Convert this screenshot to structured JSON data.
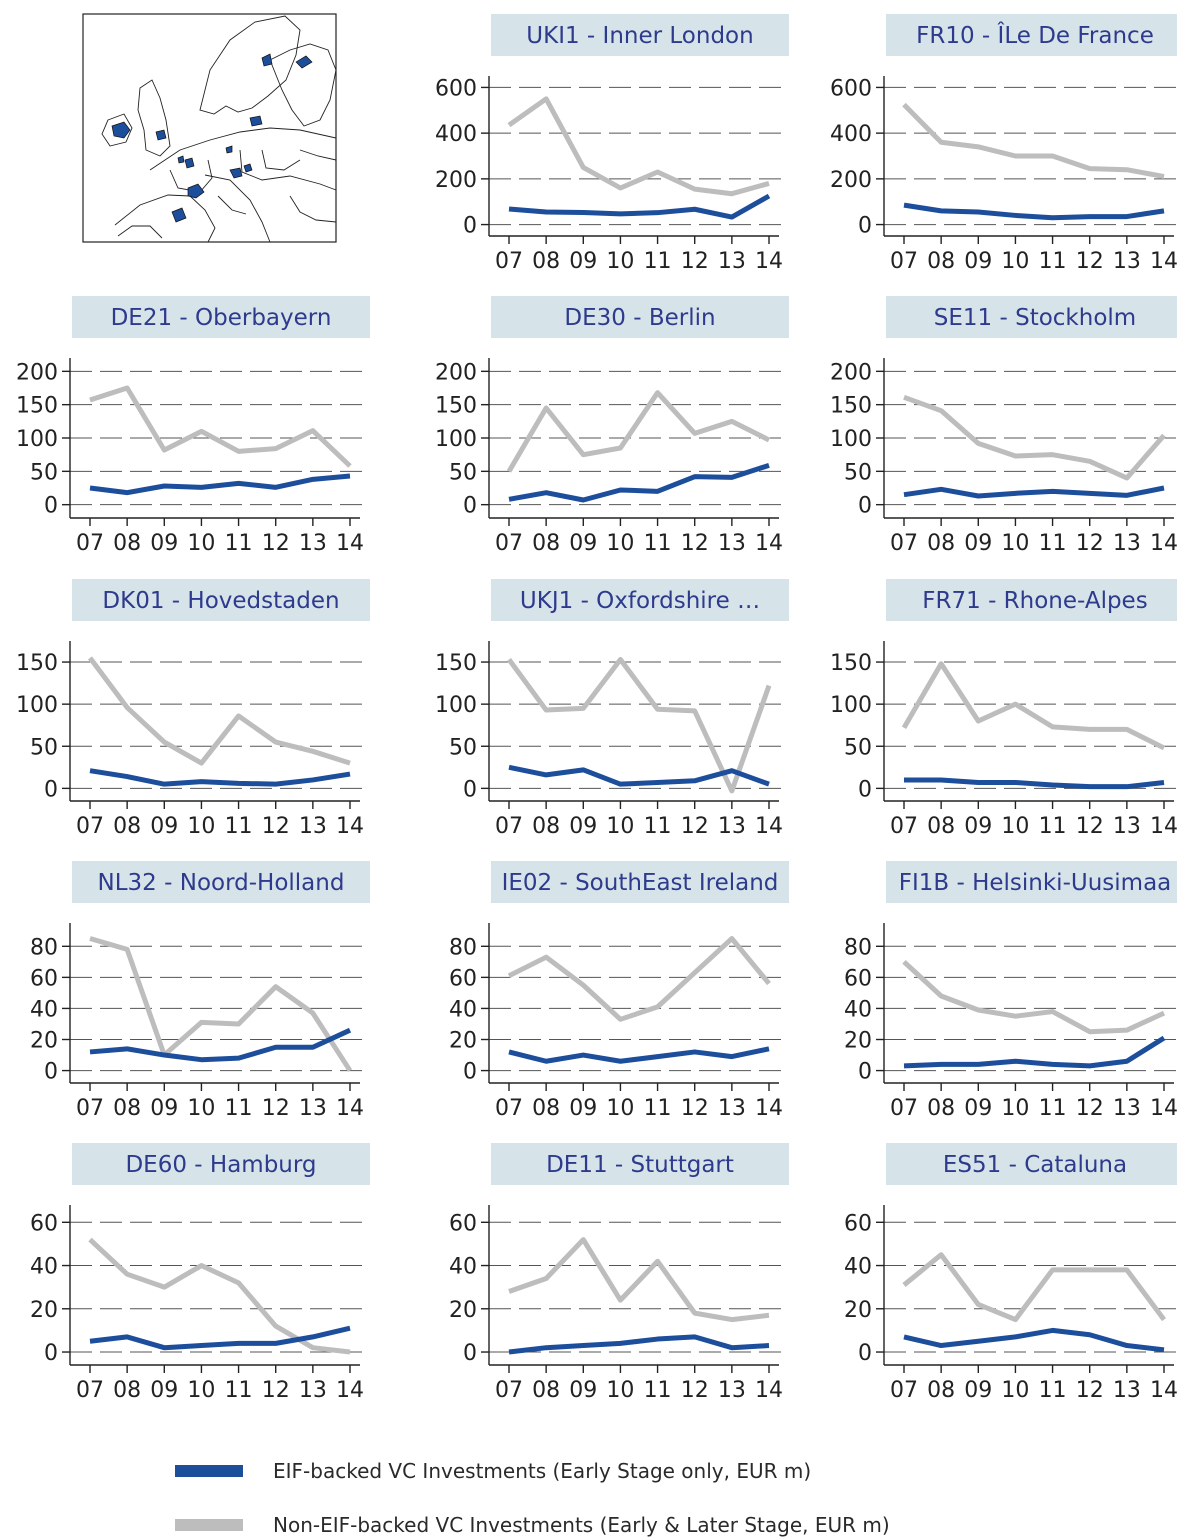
{
  "colors": {
    "eif": "#1c4e9c",
    "noneif": "#bdbdbd",
    "title_bg": "#d6e4ea",
    "title_text": "#2e3a8c"
  },
  "legend": {
    "eif_label": "EIF-backed VC Investments (Early Stage only, EUR m)",
    "noneif_label": "Non-EIF-backed VC Investments (Early & Later Stage, EUR m)"
  },
  "chart_data": [
    {
      "type": "line",
      "title": "UKI1 - Inner London",
      "categories": [
        "07",
        "08",
        "09",
        "10",
        "11",
        "12",
        "13",
        "14"
      ],
      "yticks": [
        0,
        200,
        400,
        600
      ],
      "ylim": [
        -50,
        650
      ],
      "grid": "dashed",
      "series": [
        {
          "name": "EIF-backed VC Investments (Early Stage only, EUR m)",
          "values": [
            68,
            55,
            53,
            47,
            52,
            67,
            33,
            125
          ]
        },
        {
          "name": "Non-EIF-backed VC Investments (Early & Later Stage, EUR m)",
          "values": [
            435,
            550,
            250,
            160,
            230,
            155,
            135,
            180
          ]
        }
      ]
    },
    {
      "type": "line",
      "title": "FR10 - ÎLe De France",
      "categories": [
        "07",
        "08",
        "09",
        "10",
        "11",
        "12",
        "13",
        "14"
      ],
      "yticks": [
        0,
        200,
        400,
        600
      ],
      "ylim": [
        -50,
        650
      ],
      "grid": "dashed",
      "series": [
        {
          "name": "EIF-backed VC Investments (Early Stage only, EUR m)",
          "values": [
            85,
            60,
            55,
            40,
            30,
            35,
            35,
            60
          ]
        },
        {
          "name": "Non-EIF-backed VC Investments (Early & Later Stage, EUR m)",
          "values": [
            525,
            360,
            340,
            300,
            300,
            245,
            240,
            210
          ]
        }
      ]
    },
    {
      "type": "line",
      "title": "DE21 - Oberbayern",
      "categories": [
        "07",
        "08",
        "09",
        "10",
        "11",
        "12",
        "13",
        "14"
      ],
      "yticks": [
        0,
        50,
        100,
        150,
        200
      ],
      "ylim": [
        -20,
        220
      ],
      "grid": "dashed",
      "series": [
        {
          "name": "EIF-backed VC Investments (Early Stage only, EUR m)",
          "values": [
            25,
            18,
            28,
            26,
            32,
            26,
            38,
            43
          ]
        },
        {
          "name": "Non-EIF-backed VC Investments (Early & Later Stage, EUR m)",
          "values": [
            157,
            175,
            82,
            110,
            80,
            84,
            111,
            58
          ]
        }
      ]
    },
    {
      "type": "line",
      "title": "DE30 - Berlin",
      "categories": [
        "07",
        "08",
        "09",
        "10",
        "11",
        "12",
        "13",
        "14"
      ],
      "yticks": [
        0,
        50,
        100,
        150,
        200
      ],
      "ylim": [
        -20,
        220
      ],
      "grid": "dashed",
      "series": [
        {
          "name": "EIF-backed VC Investments (Early Stage only, EUR m)",
          "values": [
            8,
            18,
            7,
            22,
            20,
            42,
            41,
            59
          ]
        },
        {
          "name": "Non-EIF-backed VC Investments (Early & Later Stage, EUR m)",
          "values": [
            50,
            145,
            75,
            85,
            168,
            107,
            125,
            97
          ]
        }
      ]
    },
    {
      "type": "line",
      "title": "SE11 - Stockholm",
      "categories": [
        "07",
        "08",
        "09",
        "10",
        "11",
        "12",
        "13",
        "14"
      ],
      "yticks": [
        0,
        50,
        100,
        150,
        200
      ],
      "ylim": [
        -20,
        220
      ],
      "grid": "dashed",
      "series": [
        {
          "name": "EIF-backed VC Investments (Early Stage only, EUR m)",
          "values": [
            15,
            23,
            13,
            17,
            20,
            17,
            14,
            25
          ]
        },
        {
          "name": "Non-EIF-backed VC Investments (Early & Later Stage, EUR m)",
          "values": [
            161,
            141,
            92,
            73,
            75,
            65,
            40,
            104
          ]
        }
      ]
    },
    {
      "type": "line",
      "title": "DK01 - Hovedstaden",
      "categories": [
        "07",
        "08",
        "09",
        "10",
        "11",
        "12",
        "13",
        "14"
      ],
      "yticks": [
        0,
        50,
        100,
        150
      ],
      "ylim": [
        -15,
        175
      ],
      "grid": "dashed",
      "series": [
        {
          "name": "EIF-backed VC Investments (Early Stage only, EUR m)",
          "values": [
            21,
            14,
            5,
            8,
            6,
            5,
            10,
            17
          ]
        },
        {
          "name": "Non-EIF-backed VC Investments (Early & Later Stage, EUR m)",
          "values": [
            155,
            96,
            55,
            30,
            86,
            55,
            44,
            30
          ]
        }
      ]
    },
    {
      "type": "line",
      "title": "UKJ1 - Oxfordshire …",
      "categories": [
        "07",
        "08",
        "09",
        "10",
        "11",
        "12",
        "13",
        "14"
      ],
      "yticks": [
        0,
        50,
        100,
        150
      ],
      "ylim": [
        -15,
        175
      ],
      "grid": "dashed",
      "series": [
        {
          "name": "EIF-backed VC Investments (Early Stage only, EUR m)",
          "values": [
            25,
            16,
            22,
            5,
            7,
            9,
            21,
            5
          ]
        },
        {
          "name": "Non-EIF-backed VC Investments (Early & Later Stage, EUR m)",
          "values": [
            153,
            93,
            95,
            153,
            94,
            92,
            -3,
            122
          ]
        }
      ]
    },
    {
      "type": "line",
      "title": "FR71 - Rhone-Alpes",
      "categories": [
        "07",
        "08",
        "09",
        "10",
        "11",
        "12",
        "13",
        "14"
      ],
      "yticks": [
        0,
        50,
        100,
        150
      ],
      "ylim": [
        -15,
        175
      ],
      "grid": "dashed",
      "series": [
        {
          "name": "EIF-backed VC Investments (Early Stage only, EUR m)",
          "values": [
            10,
            10,
            7,
            7,
            4,
            2,
            2,
            7
          ]
        },
        {
          "name": "Non-EIF-backed VC Investments (Early & Later Stage, EUR m)",
          "values": [
            72,
            148,
            80,
            100,
            73,
            70,
            70,
            48
          ]
        }
      ]
    },
    {
      "type": "line",
      "title": "NL32 - Noord-Holland",
      "categories": [
        "07",
        "08",
        "09",
        "10",
        "11",
        "12",
        "13",
        "14"
      ],
      "yticks": [
        0,
        20,
        40,
        60,
        80
      ],
      "ylim": [
        -8,
        95
      ],
      "grid": "dashed",
      "series": [
        {
          "name": "EIF-backed VC Investments (Early Stage only, EUR m)",
          "values": [
            12,
            14,
            10,
            7,
            8,
            15,
            15,
            26
          ]
        },
        {
          "name": "Non-EIF-backed VC Investments (Early & Later Stage, EUR m)",
          "values": [
            85,
            78,
            10,
            31,
            30,
            54,
            37,
            0
          ]
        }
      ]
    },
    {
      "type": "line",
      "title": "IE02 - SouthEast Ireland",
      "categories": [
        "07",
        "08",
        "09",
        "10",
        "11",
        "12",
        "13",
        "14"
      ],
      "yticks": [
        0,
        20,
        40,
        60,
        80
      ],
      "ylim": [
        -8,
        95
      ],
      "grid": "dashed",
      "series": [
        {
          "name": "EIF-backed VC Investments (Early Stage only, EUR m)",
          "values": [
            12,
            6,
            10,
            6,
            9,
            12,
            9,
            14
          ]
        },
        {
          "name": "Non-EIF-backed VC Investments (Early & Later Stage, EUR m)",
          "values": [
            61,
            73,
            55,
            33,
            41,
            63,
            85,
            56
          ]
        }
      ]
    },
    {
      "type": "line",
      "title": "FI1B - Helsinki-Uusimaa",
      "categories": [
        "07",
        "08",
        "09",
        "10",
        "11",
        "12",
        "13",
        "14"
      ],
      "yticks": [
        0,
        20,
        40,
        60,
        80
      ],
      "ylim": [
        -8,
        95
      ],
      "grid": "dashed",
      "series": [
        {
          "name": "EIF-backed VC Investments (Early Stage only, EUR m)",
          "values": [
            3,
            4,
            4,
            6,
            4,
            3,
            6,
            21
          ]
        },
        {
          "name": "Non-EIF-backed VC Investments (Early & Later Stage, EUR m)",
          "values": [
            70,
            48,
            39,
            35,
            38,
            25,
            26,
            37
          ]
        }
      ]
    },
    {
      "type": "line",
      "title": "DE60 - Hamburg",
      "categories": [
        "07",
        "08",
        "09",
        "10",
        "11",
        "12",
        "13",
        "14"
      ],
      "yticks": [
        0,
        20,
        40,
        60
      ],
      "ylim": [
        -6,
        68
      ],
      "grid": "dashed",
      "series": [
        {
          "name": "EIF-backed VC Investments (Early Stage only, EUR m)",
          "values": [
            5,
            7,
            2,
            3,
            4,
            4,
            7,
            11
          ]
        },
        {
          "name": "Non-EIF-backed VC Investments (Early & Later Stage, EUR m)",
          "values": [
            52,
            36,
            30,
            40,
            32,
            12,
            2,
            0
          ]
        }
      ]
    },
    {
      "type": "line",
      "title": "DE11 - Stuttgart",
      "categories": [
        "07",
        "08",
        "09",
        "10",
        "11",
        "12",
        "13",
        "14"
      ],
      "yticks": [
        0,
        20,
        40,
        60
      ],
      "ylim": [
        -6,
        68
      ],
      "grid": "dashed",
      "series": [
        {
          "name": "EIF-backed VC Investments (Early Stage only, EUR m)",
          "values": [
            0,
            2,
            3,
            4,
            6,
            7,
            2,
            3
          ]
        },
        {
          "name": "Non-EIF-backed VC Investments (Early & Later Stage, EUR m)",
          "values": [
            28,
            34,
            52,
            24,
            42,
            18,
            15,
            17
          ]
        }
      ]
    },
    {
      "type": "line",
      "title": "ES51 - Cataluna",
      "categories": [
        "07",
        "08",
        "09",
        "10",
        "11",
        "12",
        "13",
        "14"
      ],
      "yticks": [
        0,
        20,
        40,
        60
      ],
      "ylim": [
        -6,
        68
      ],
      "grid": "dashed",
      "series": [
        {
          "name": "EIF-backed VC Investments (Early Stage only, EUR m)",
          "values": [
            7,
            3,
            5,
            7,
            10,
            8,
            3,
            1
          ]
        },
        {
          "name": "Non-EIF-backed VC Investments (Early & Later Stage, EUR m)",
          "values": [
            31,
            45,
            22,
            15,
            38,
            38,
            38,
            15
          ]
        }
      ]
    }
  ]
}
